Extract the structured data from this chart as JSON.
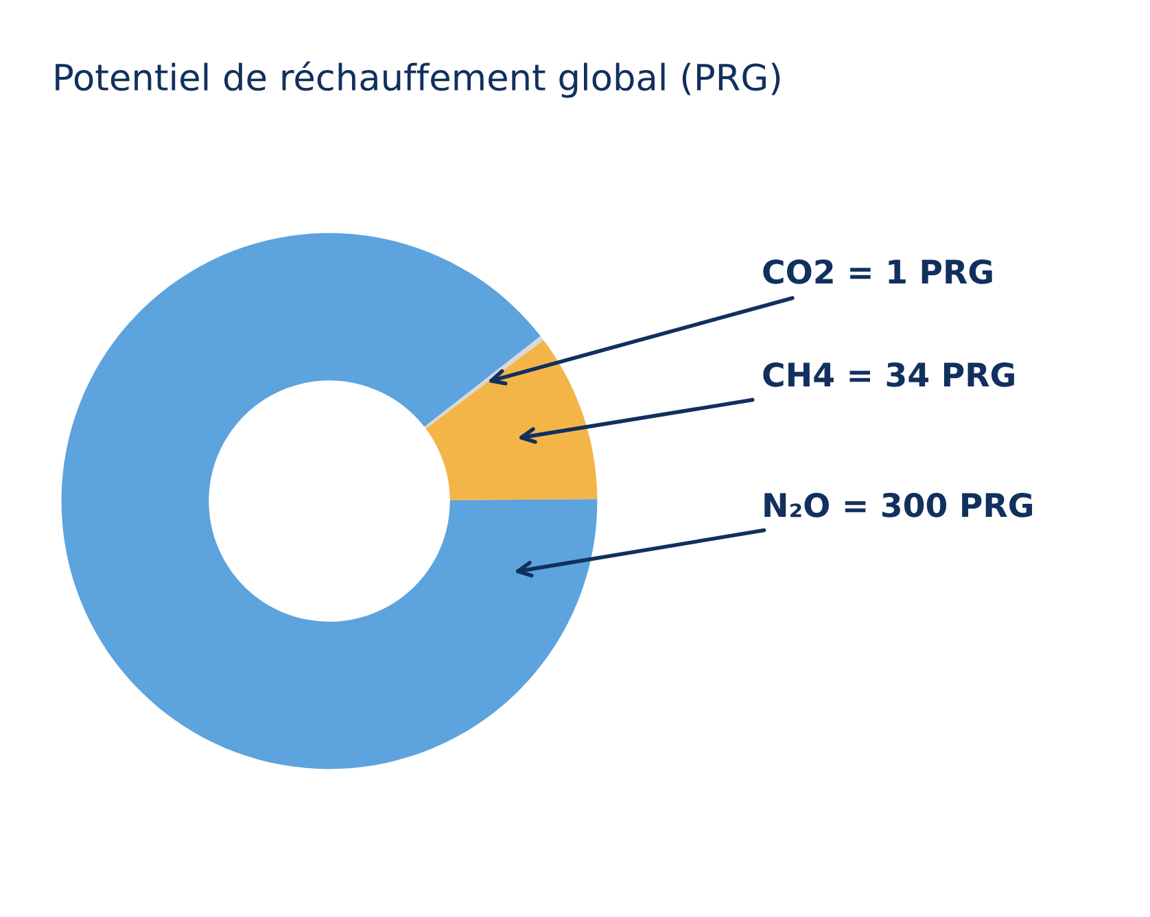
{
  "chart_data": {
    "type": "donut",
    "title": "Potentiel de réchauffement global (PRG)",
    "categories": [
      "CO2 = 1 PRG",
      "CH4 = 34 PRG",
      "N₂O = 300 PRG"
    ],
    "values": [
      1,
      34,
      300
    ],
    "colors": [
      "#d9d9d9",
      "#f4b548",
      "#5da3dd"
    ]
  }
}
